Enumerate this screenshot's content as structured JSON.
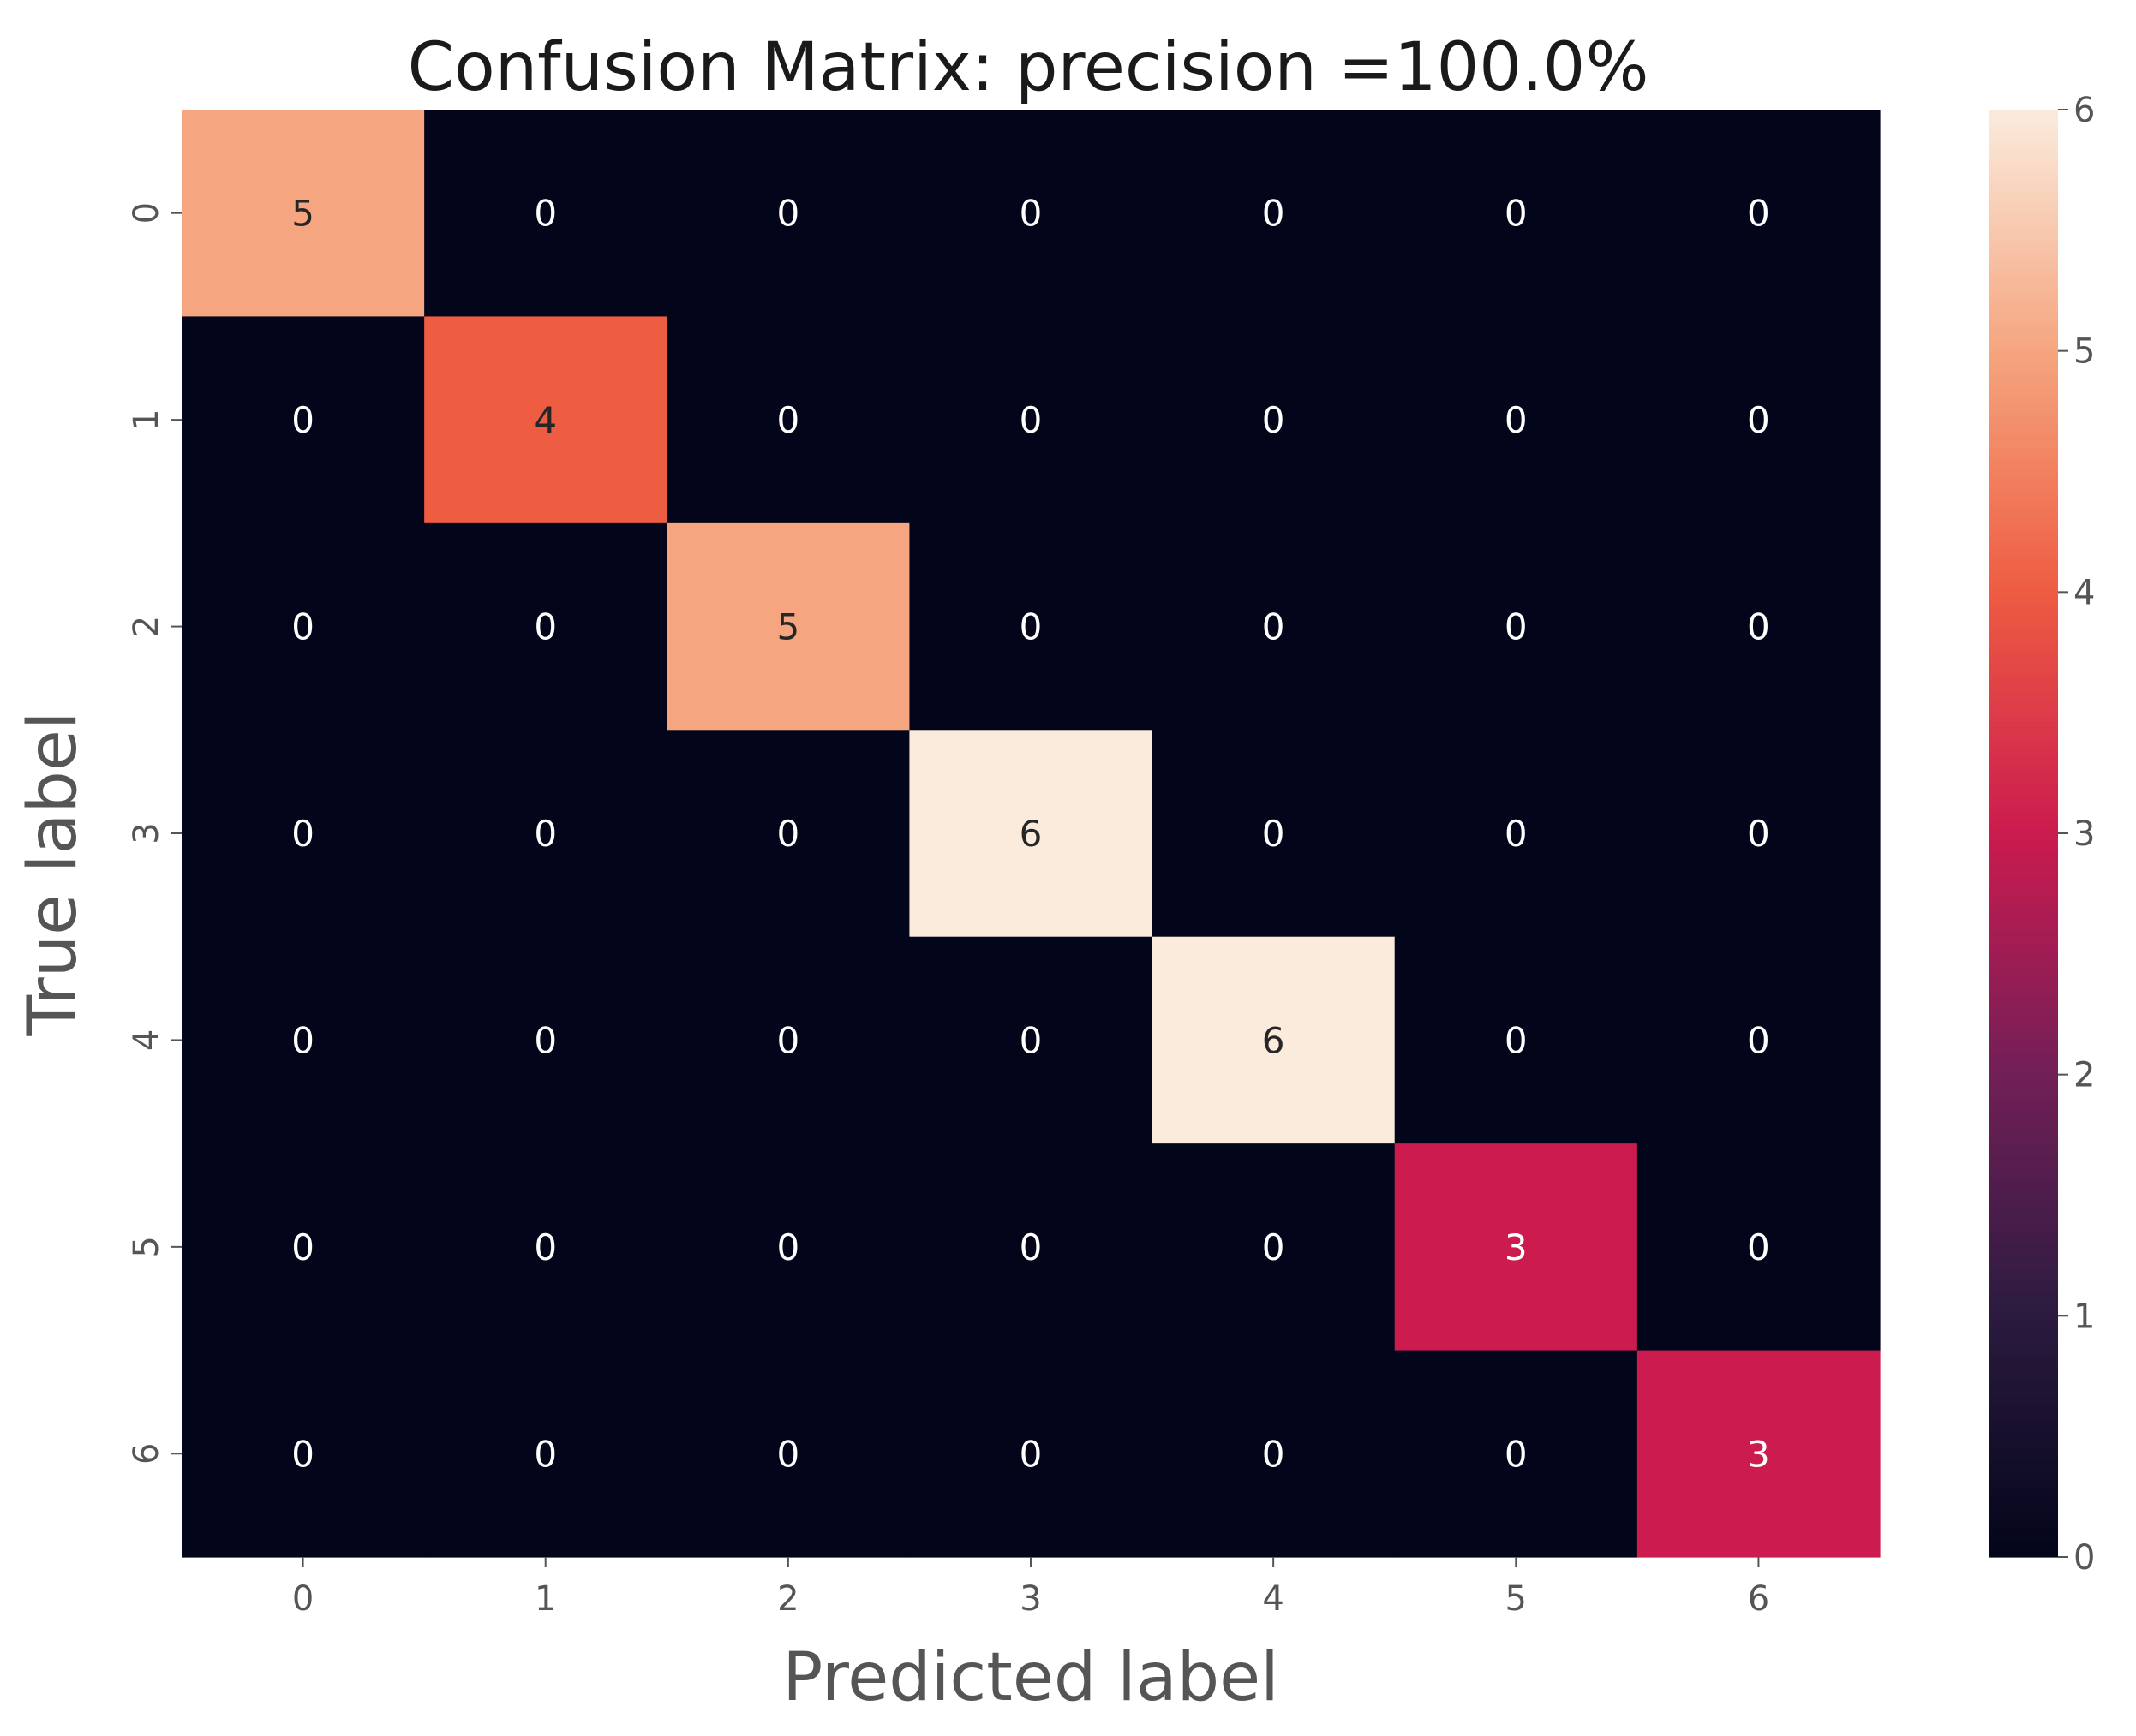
{
  "chart_data": {
    "type": "heatmap",
    "title": "Confusion Matrix: precision =100.0%",
    "xlabel": "Predicted label",
    "ylabel": "True label",
    "x_categories": [
      "0",
      "1",
      "2",
      "3",
      "4",
      "5",
      "6"
    ],
    "y_categories": [
      "0",
      "1",
      "2",
      "3",
      "4",
      "5",
      "6"
    ],
    "values": [
      [
        5,
        0,
        0,
        0,
        0,
        0,
        0
      ],
      [
        0,
        4,
        0,
        0,
        0,
        0,
        0
      ],
      [
        0,
        0,
        5,
        0,
        0,
        0,
        0
      ],
      [
        0,
        0,
        0,
        6,
        0,
        0,
        0
      ],
      [
        0,
        0,
        0,
        0,
        6,
        0,
        0
      ],
      [
        0,
        0,
        0,
        0,
        0,
        3,
        0
      ],
      [
        0,
        0,
        0,
        0,
        0,
        0,
        3
      ]
    ],
    "colorbar": {
      "range": [
        0,
        6
      ],
      "ticks": [
        "0",
        "1",
        "2",
        "3",
        "4",
        "5",
        "6"
      ],
      "colormap": "rocket",
      "colors": {
        "0": "#03051a",
        "1": "#2b1b3f",
        "2": "#711f57",
        "3": "#cb1b4f",
        "4": "#ee5c42",
        "5": "#f5a57f",
        "6": "#faebdd"
      }
    },
    "grid": false,
    "legend": "none"
  }
}
